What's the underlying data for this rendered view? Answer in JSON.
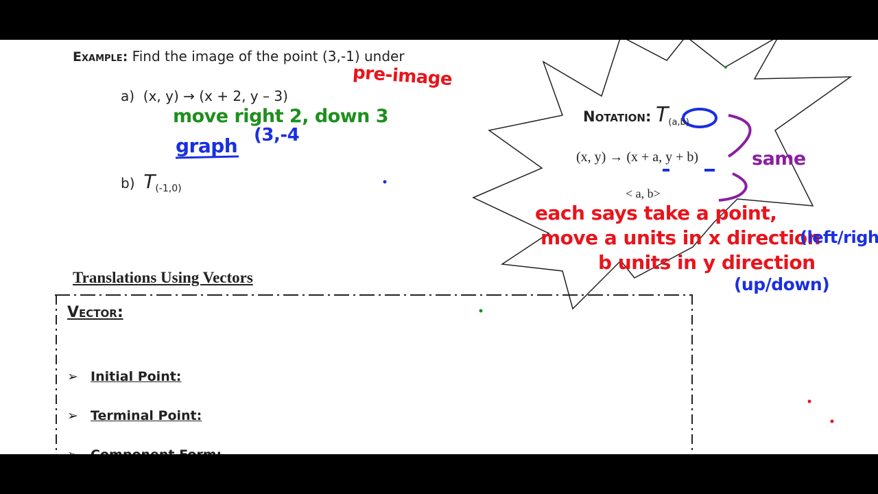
{
  "example": {
    "label": "Example:",
    "prompt": "Find the image of the point (3,-1) under",
    "part_a_label": "a)",
    "part_a_rule": "(x, y) → (x + 2, y – 3)",
    "part_b_label": "b)",
    "part_b_T": "T",
    "part_b_sub": "(-1,0)"
  },
  "notation": {
    "label": "Notation:",
    "T": "T",
    "sub": "(a,b)",
    "rule": "(x, y) → (x + a, y + b)",
    "vector": "< a, b>"
  },
  "section": {
    "title": "Translations Using Vectors",
    "vector_label": "Vector:",
    "items": [
      "Initial Point:",
      "Terminal Point:",
      "Component Form:"
    ]
  },
  "annotations": {
    "pre_image": "pre-image",
    "move": "move right 2, down 3",
    "graph": "graph",
    "point": "(3,-4",
    "same": "same",
    "each1": "each says take a point,",
    "each2": "move a units in x direction",
    "each3": "b units in y direction",
    "left_right": "(left/right)",
    "up_down": "(up/down)"
  },
  "colors": {
    "red": "#e8141c",
    "green": "#1e8f1e",
    "blue": "#1a2fe0",
    "purple": "#8a1fa0"
  }
}
